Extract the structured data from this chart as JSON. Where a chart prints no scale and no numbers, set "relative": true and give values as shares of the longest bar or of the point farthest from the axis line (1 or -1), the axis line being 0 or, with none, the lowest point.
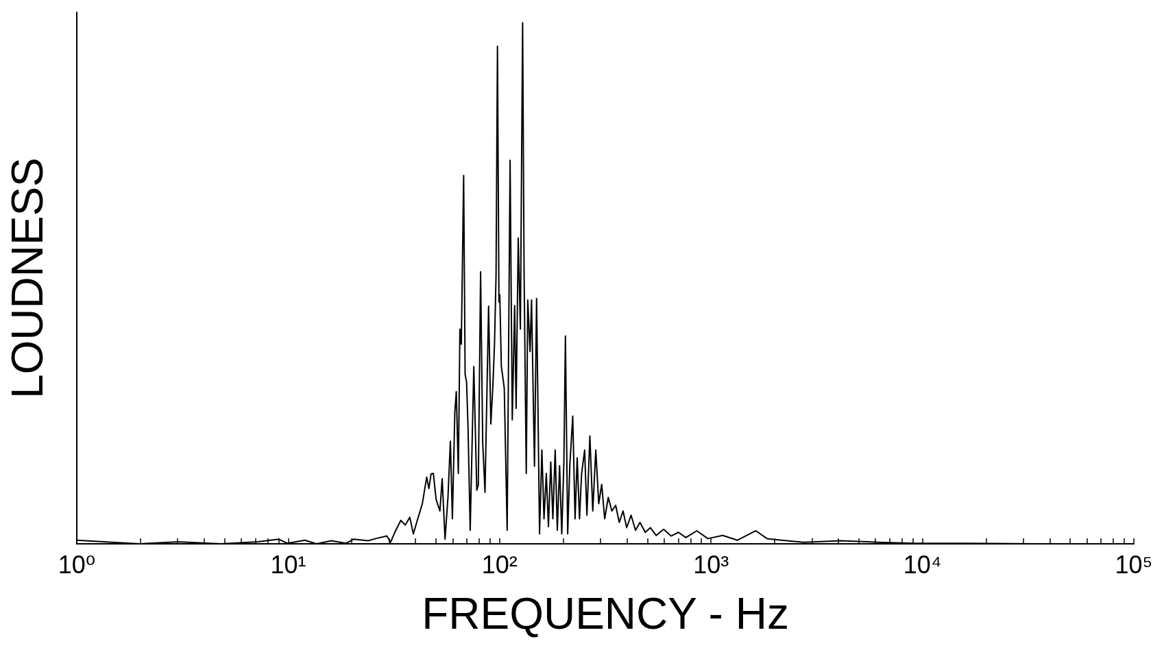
{
  "chart_data": {
    "type": "line",
    "xlabel": "FREQUENCY - Hz",
    "ylabel": "LOUDNESS",
    "relative": true,
    "log": "x",
    "grid": false,
    "marker": "none",
    "line_style": "solid",
    "xlim": [
      1,
      100000
    ],
    "xticks": [
      {
        "value": 1,
        "label": "10⁰"
      },
      {
        "value": 2,
        "label": null
      },
      {
        "value": 3,
        "label": null
      },
      {
        "value": 4,
        "label": null
      },
      {
        "value": 5,
        "label": null
      },
      {
        "value": 6,
        "label": null
      },
      {
        "value": 7,
        "label": null
      },
      {
        "value": 8,
        "label": null
      },
      {
        "value": 9,
        "label": null
      },
      {
        "value": 10,
        "label": "10¹"
      },
      {
        "value": 20,
        "label": null
      },
      {
        "value": 30,
        "label": null
      },
      {
        "value": 40,
        "label": null
      },
      {
        "value": 50,
        "label": null
      },
      {
        "value": 60,
        "label": null
      },
      {
        "value": 70,
        "label": null
      },
      {
        "value": 80,
        "label": null
      },
      {
        "value": 90,
        "label": null
      },
      {
        "value": 100,
        "label": "10²"
      },
      {
        "value": 200,
        "label": null
      },
      {
        "value": 300,
        "label": null
      },
      {
        "value": 400,
        "label": null
      },
      {
        "value": 500,
        "label": null
      },
      {
        "value": 600,
        "label": null
      },
      {
        "value": 700,
        "label": null
      },
      {
        "value": 800,
        "label": null
      },
      {
        "value": 900,
        "label": null
      },
      {
        "value": 1000,
        "label": "10³"
      },
      {
        "value": 2000,
        "label": null
      },
      {
        "value": 3000,
        "label": null
      },
      {
        "value": 4000,
        "label": null
      },
      {
        "value": 5000,
        "label": null
      },
      {
        "value": 6000,
        "label": null
      },
      {
        "value": 7000,
        "label": null
      },
      {
        "value": 8000,
        "label": null
      },
      {
        "value": 9000,
        "label": null
      },
      {
        "value": 10000,
        "label": "10⁴"
      },
      {
        "value": 20000,
        "label": null
      },
      {
        "value": 30000,
        "label": null
      },
      {
        "value": 40000,
        "label": null
      },
      {
        "value": 50000,
        "label": null
      },
      {
        "value": 60000,
        "label": null
      },
      {
        "value": 70000,
        "label": null
      },
      {
        "value": 80000,
        "label": null
      },
      {
        "value": 90000,
        "label": null
      },
      {
        "value": 100000,
        "label": "10⁵"
      }
    ],
    "series": [
      {
        "color": "#000000",
        "x": [
          1,
          1.98,
          3.0,
          4.8,
          7.2,
          9.0,
          9.9,
          12.0,
          13.6,
          16.0,
          18.8,
          20.4,
          23.9,
          25.9,
          29.3,
          30.5,
          32.2,
          34.1,
          35.8,
          37.6,
          39.1,
          41.0,
          43.1,
          45.2,
          46.3,
          47.4,
          48.6,
          50.1,
          52.2,
          53.5,
          55.2,
          57.0,
          58.5,
          59.8,
          61.4,
          62.4,
          63.8,
          64.9,
          65.9,
          67.6,
          68.7,
          69.8,
          70.9,
          72.6,
          75.5,
          78.0,
          79.3,
          81.3,
          83.2,
          85.3,
          88.7,
          90.9,
          93.1,
          94.6,
          96.2,
          97.7,
          99.3,
          100.2,
          101.9,
          105.2,
          108.6,
          112.1,
          114.8,
          117.8,
          119.7,
          122.5,
          125.4,
          128.5,
          130.6,
          133.7,
          135.9,
          139.3,
          141.6,
          146.2,
          149.6,
          154.5,
          158.5,
          162.2,
          166.3,
          170.2,
          174.6,
          178.6,
          183.2,
          187.5,
          192.2,
          196.8,
          201.4,
          204.8,
          209.9,
          214.8,
          221.8,
          227.5,
          232.8,
          238.8,
          244.3,
          252.5,
          258.8,
          267.3,
          275.9,
          285.1,
          294.4,
          304.1,
          314.1,
          326.6,
          339.6,
          354.0,
          368.1,
          383.7,
          399.0,
          418.8,
          439.5,
          461.3,
          488.7,
          516.4,
          550.8,
          597.0,
          647.1,
          701.5,
          760.3,
          857.0,
          966.1,
          1135,
          1334,
          1629,
          1841,
          2158,
          2748,
          4111,
          6138,
          9183,
          16110,
          36060,
          100000
        ],
        "values": [
          0.007,
          0,
          0.004,
          0,
          0.004,
          0.009,
          0.001,
          0.007,
          0,
          0.006,
          0.001,
          0.009,
          0.006,
          0.01,
          0.015,
          0.003,
          0.025,
          0.045,
          0.036,
          0.051,
          0.019,
          0.048,
          0.077,
          0.128,
          0.106,
          0.134,
          0.135,
          0.085,
          0.063,
          0.125,
          0.009,
          0.09,
          0.197,
          0.048,
          0.252,
          0.292,
          0.135,
          0.412,
          0.383,
          0.707,
          0.325,
          0.31,
          0.224,
          0.026,
          0.34,
          0.103,
          0.113,
          0.522,
          0.194,
          0.099,
          0.456,
          0.23,
          0.31,
          0.383,
          0.515,
          0.955,
          0.464,
          0.478,
          0.341,
          0.299,
          0.026,
          0.736,
          0.238,
          0.457,
          0.26,
          0.587,
          0.412,
          1.0,
          0.515,
          0.135,
          0.468,
          0.369,
          0.468,
          0.149,
          0.471,
          0.019,
          0.18,
          0.048,
          0.135,
          0.033,
          0.157,
          0.048,
          0.18,
          0.026,
          0.15,
          0.019,
          0.157,
          0.399,
          0.019,
          0.15,
          0.245,
          0.048,
          0.165,
          0.048,
          0.135,
          0.18,
          0.055,
          0.207,
          0.063,
          0.18,
          0.077,
          0.114,
          0.048,
          0.089,
          0.063,
          0.074,
          0.041,
          0.063,
          0.031,
          0.055,
          0.026,
          0.041,
          0.022,
          0.031,
          0.016,
          0.028,
          0.015,
          0.022,
          0.012,
          0.025,
          0.01,
          0.016,
          0.007,
          0.025,
          0.01,
          0.007,
          0.003,
          0.006,
          0.003,
          0.001,
          0.001,
          0,
          0
        ]
      }
    ]
  }
}
